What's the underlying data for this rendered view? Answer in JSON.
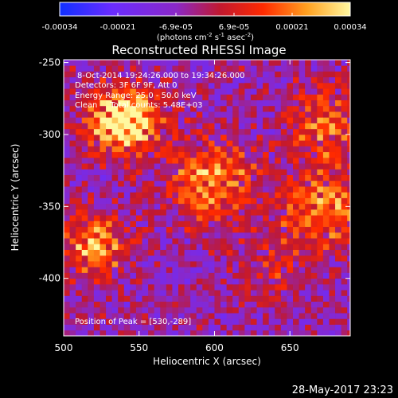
{
  "chart_data": {
    "type": "heatmap",
    "title": "Reconstructed RHESSI Image",
    "xlabel": "Heliocentric X (arcsec)",
    "ylabel": "Heliocentric Y (arcsec)",
    "xlim": [
      500,
      690
    ],
    "ylim": [
      -440,
      -248
    ],
    "x_ticks": [
      500,
      550,
      600,
      650
    ],
    "y_ticks": [
      -250,
      -300,
      -350,
      -400
    ],
    "colorbar": {
      "min": -0.00034,
      "max": 0.00034,
      "ticks": [
        "-0.00034",
        "-0.00021",
        "-6.9e-05",
        "6.9e-05",
        "0.00021",
        "0.00034"
      ],
      "unit_parts": [
        "(photons cm",
        "-2",
        " s",
        "-1",
        " asec",
        "-2",
        ")"
      ],
      "colors": [
        "#1030ff",
        "#6a2cff",
        "#8a28c8",
        "#c01830",
        "#ff2a00",
        "#ffa020",
        "#fff8a0"
      ]
    },
    "annotations": {
      "time_range": "8-Oct-2014 19:24:26.000 to 19:34:26.000",
      "detectors": "Detectors: 3F 6F 9F, Att 0",
      "energy": "Energy Range: 25.0 - 50.0 keV",
      "clean": "Clean     Total counts: 5.48E+03",
      "peak": "Position of Peak = [530,-289]"
    },
    "peak": [
      530,
      -289
    ],
    "sources": [
      {
        "x": 540,
        "y": -290,
        "sigma": 16,
        "amp": 2.7
      },
      {
        "x": 598,
        "y": -332,
        "sigma": 20,
        "amp": 1.6
      },
      {
        "x": 520,
        "y": -376,
        "sigma": 15,
        "amp": 1.7
      },
      {
        "x": 674,
        "y": -292,
        "sigma": 18,
        "amp": 1.2
      },
      {
        "x": 672,
        "y": -350,
        "sigma": 20,
        "amp": 1.5
      },
      {
        "x": 640,
        "y": -395,
        "sigma": 16,
        "amp": 0.6
      }
    ]
  },
  "footer": {
    "date": "28-May-2017 23:23"
  }
}
